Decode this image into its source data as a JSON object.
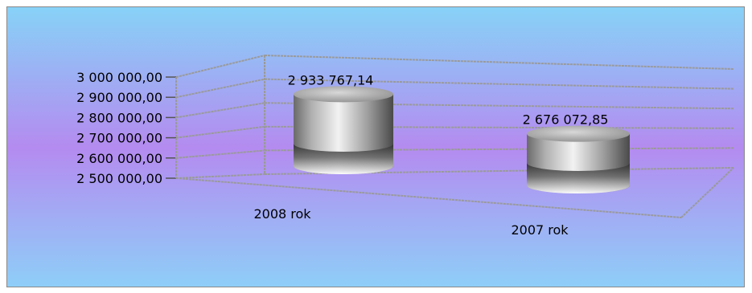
{
  "chart_data": {
    "type": "bar",
    "title": "",
    "xlabel": "",
    "ylabel": "",
    "categories": [
      "2008 rok",
      "2007 rok"
    ],
    "values": [
      2933767.14,
      2676072.85
    ],
    "value_labels": [
      "2 933 767,14",
      "2 676 072,85"
    ],
    "ylim": [
      2500000,
      3000000
    ],
    "yticks": [
      {
        "value": 3000000,
        "label": "3 000 000,00"
      },
      {
        "value": 2900000,
        "label": "2 900 000,00"
      },
      {
        "value": 2800000,
        "label": "2 800 000,00"
      },
      {
        "value": 2700000,
        "label": "2 700 000,00"
      },
      {
        "value": 2600000,
        "label": "2 600 000,00"
      },
      {
        "value": 2500000,
        "label": "2 500 000,00"
      }
    ],
    "grid": true,
    "style": "3d-cylinder",
    "colors": {
      "bar_light": "#ffffff",
      "bar_mid": "#a8a8a8",
      "bar_dark": "#3c3c3c",
      "bg_top": "#87d2f7",
      "bg_mid": "#b48bf0",
      "bg_bottom": "#8ecff8",
      "grid": "#9a9a9a"
    }
  }
}
